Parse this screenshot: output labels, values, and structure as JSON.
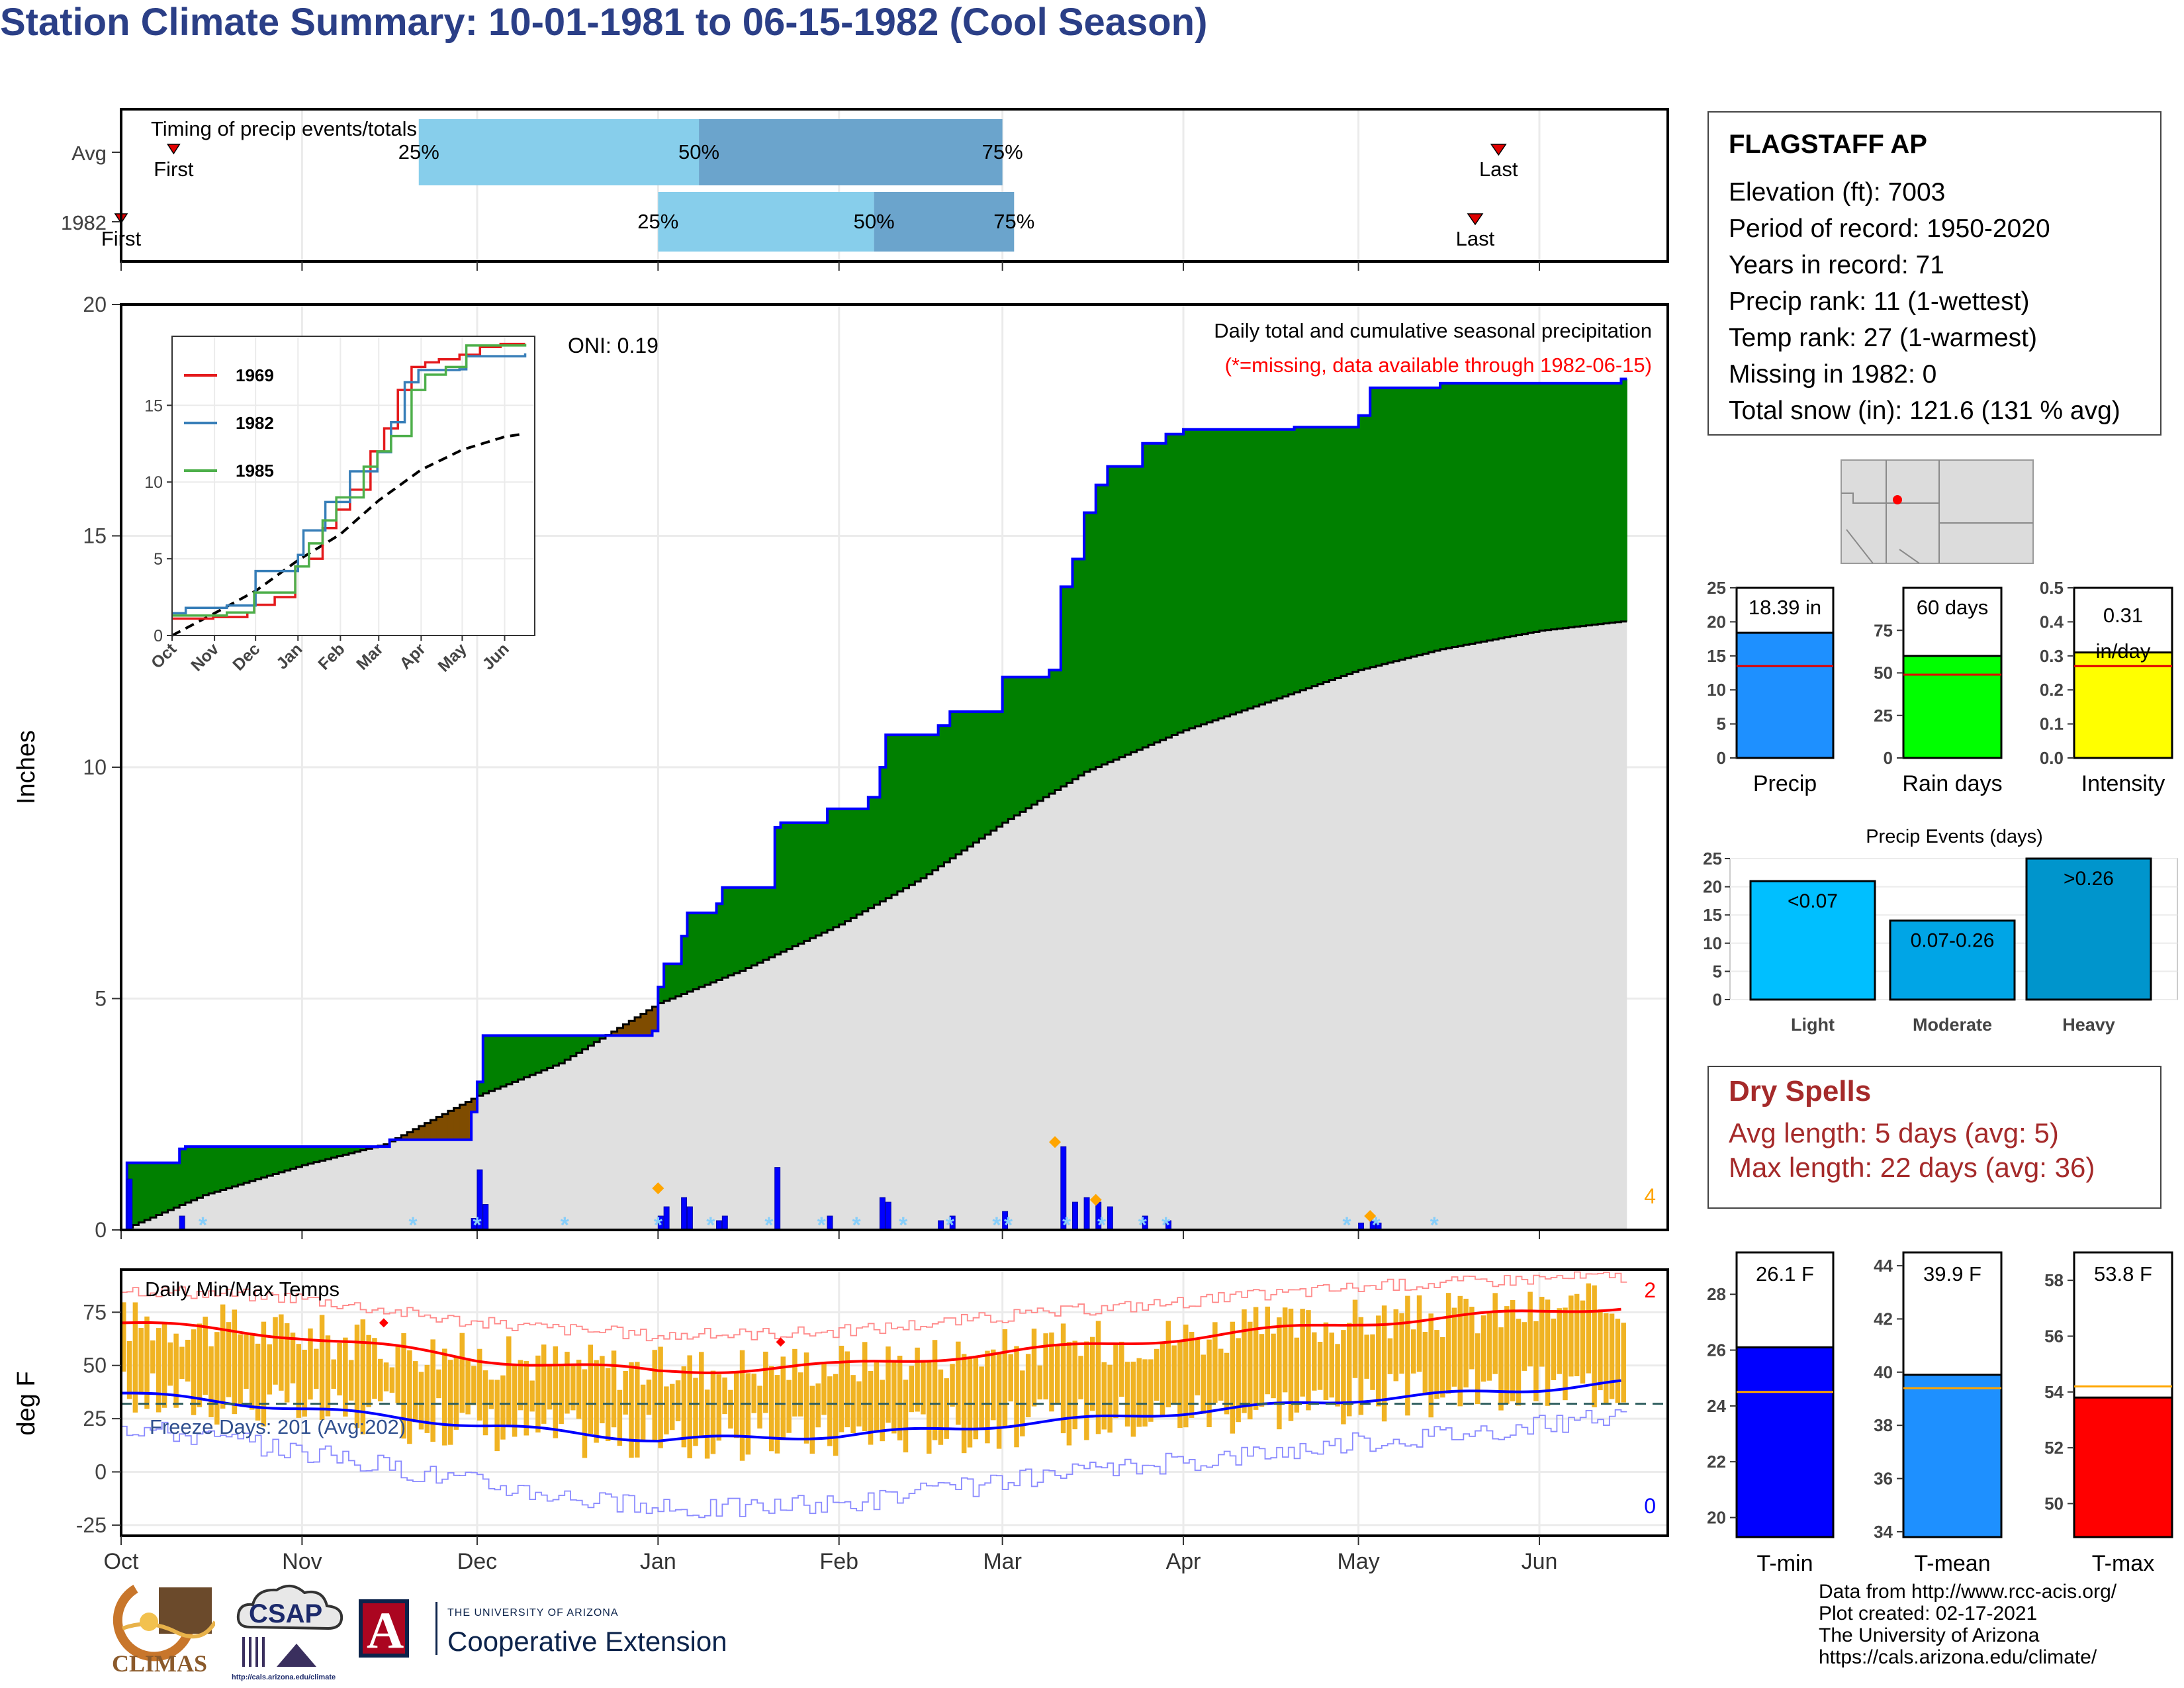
{
  "title": "Station Climate Summary: 10-01-1981 to 06-15-1982 (Cool Season)",
  "station": {
    "name": "FLAGSTAFF AP",
    "lines": [
      "Elevation (ft): 7003",
      "Period of record: 1950-2020",
      "Years in record: 71",
      "Precip rank: 11 (1-wettest)",
      "Temp rank: 27 (1-warmest)",
      "Missing in 1982: 0",
      "Total snow (in): 121.6 (131 % avg)"
    ]
  },
  "dry_spells": {
    "title": "Dry Spells",
    "avg_length": "Avg length: 5 days (avg: 5)",
    "max_length": "Max length: 22 days (avg: 36)"
  },
  "credits": [
    "Data from http://www.rcc-acis.org/",
    "Plot created: 02-17-2021",
    "The University of Arizona",
    "https://cals.arizona.edu/climate/"
  ],
  "logos": {
    "climas": "CLIMAS",
    "csap": "CSAP",
    "csap_url": "http://cals.arizona.edu/climate",
    "ua_small": "THE UNIVERSITY OF ARIZONA",
    "ua_big": "Cooperative Extension",
    "ua_letter": "A"
  },
  "colors": {
    "title": "#2b3f87",
    "surplus": "#008000",
    "deficit": "#7f4c00",
    "normal_fill": "#e0e0e0",
    "cum_line": "#0000ff",
    "daily_bar": "#0000ff",
    "snow_marker": "#87cefa",
    "extreme_marker": "#ffa500",
    "temp_bar": "#f0b323",
    "tmax_avg": "#ff0000",
    "tmin_avg": "#0000ff",
    "freeze_line": "#2f5f5f",
    "timing_light": "#87ceeb",
    "timing_dark": "#6ba4cc",
    "dry": "#a52a2a"
  },
  "months": [
    "Oct",
    "Nov",
    "Dec",
    "Jan",
    "Feb",
    "Mar",
    "Apr",
    "May",
    "Jun"
  ],
  "chart_data": [
    {
      "id": "timing",
      "type": "bar",
      "title": "Timing of precip events/totals",
      "rows": [
        {
          "label": "Avg",
          "first": "Oct 10",
          "q25": "Nov 21",
          "q50": "Jan 8",
          "q75": "Mar 1",
          "last": "May 25",
          "labels": {
            "first": "First",
            "last": "Last",
            "q25": "25%",
            "q50": "50%",
            "q75": "75%"
          }
        },
        {
          "label": "1982",
          "first": "Oct 1",
          "q25": "Jan 1",
          "q50": "Feb 7",
          "q75": "Mar 3",
          "last": "May 21",
          "labels": {
            "first": "First",
            "last": "Last",
            "q25": "25%",
            "q50": "50%",
            "q75": "75%"
          }
        }
      ]
    },
    {
      "id": "precip",
      "type": "area",
      "title": "Daily total and cumulative seasonal precipitation",
      "subtitle": "(*=missing, data available through 1982-06-15)",
      "oni": "ONI: 0.19",
      "ylabel": "Inches",
      "ylim": [
        0,
        20
      ],
      "yticks": [
        0,
        5,
        10,
        15,
        20
      ],
      "xticks": [
        "Oct",
        "Nov",
        "Dec",
        "Jan",
        "Feb",
        "Mar",
        "Apr",
        "May",
        "Jun"
      ],
      "extreme_count": "4",
      "cumulative_1982": [
        [
          "1981-10-01",
          0.0
        ],
        [
          "1981-10-02",
          1.45
        ],
        [
          "1981-10-11",
          1.75
        ],
        [
          "1981-10-12",
          1.8
        ],
        [
          "1981-11-11",
          1.8
        ],
        [
          "1981-11-16",
          1.95
        ],
        [
          "1981-11-30",
          2.55
        ],
        [
          "1981-12-01",
          3.2
        ],
        [
          "1981-12-02",
          4.2
        ],
        [
          "1981-12-31",
          4.3
        ],
        [
          "1982-01-01",
          5.25
        ],
        [
          "1982-01-02",
          5.75
        ],
        [
          "1982-01-05",
          6.35
        ],
        [
          "1982-01-06",
          6.85
        ],
        [
          "1982-01-11",
          7.05
        ],
        [
          "1982-01-12",
          7.4
        ],
        [
          "1982-01-21",
          8.7
        ],
        [
          "1982-01-22",
          8.8
        ],
        [
          "1982-01-29",
          8.8
        ],
        [
          "1982-01-30",
          9.1
        ],
        [
          "1982-02-06",
          9.35
        ],
        [
          "1982-02-08",
          10.0
        ],
        [
          "1982-02-09",
          10.7
        ],
        [
          "1982-02-18",
          10.9
        ],
        [
          "1982-02-20",
          11.2
        ],
        [
          "1982-03-01",
          11.95
        ],
        [
          "1982-03-09",
          12.1
        ],
        [
          "1982-03-11",
          13.9
        ],
        [
          "1982-03-13",
          14.5
        ],
        [
          "1982-03-15",
          15.5
        ],
        [
          "1982-03-17",
          16.1
        ],
        [
          "1982-03-19",
          16.5
        ],
        [
          "1982-03-25",
          17.0
        ],
        [
          "1982-03-29",
          17.2
        ],
        [
          "1982-04-01",
          17.3
        ],
        [
          "1982-04-20",
          17.35
        ],
        [
          "1982-05-01",
          17.6
        ],
        [
          "1982-05-03",
          18.2
        ],
        [
          "1982-05-15",
          18.3
        ],
        [
          "1982-06-15",
          18.39
        ]
      ],
      "normal_cumulative": [
        [
          "1981-10-01",
          0.0
        ],
        [
          "1981-10-15",
          0.75
        ],
        [
          "1981-11-01",
          1.4
        ],
        [
          "1981-11-15",
          1.85
        ],
        [
          "1981-12-01",
          2.9
        ],
        [
          "1981-12-15",
          3.6
        ],
        [
          "1982-01-01",
          4.9
        ],
        [
          "1982-01-15",
          5.6
        ],
        [
          "1982-02-01",
          6.6
        ],
        [
          "1982-02-15",
          7.6
        ],
        [
          "1982-03-01",
          8.8
        ],
        [
          "1982-03-15",
          9.9
        ],
        [
          "1982-04-01",
          10.8
        ],
        [
          "1982-04-15",
          11.4
        ],
        [
          "1982-05-01",
          12.1
        ],
        [
          "1982-05-15",
          12.55
        ],
        [
          "1982-06-01",
          12.95
        ],
        [
          "1982-06-15",
          13.15
        ]
      ],
      "daily_precip": [
        [
          "1981-10-02",
          1.1
        ],
        [
          "1981-10-11",
          0.3
        ],
        [
          "1981-11-30",
          0.25
        ],
        [
          "1981-12-01",
          1.3
        ],
        [
          "1981-12-02",
          0.55
        ],
        [
          "1982-01-01",
          0.3
        ],
        [
          "1982-01-02",
          0.5
        ],
        [
          "1982-01-05",
          0.7
        ],
        [
          "1982-01-06",
          0.5
        ],
        [
          "1982-01-11",
          0.2
        ],
        [
          "1982-01-12",
          0.3
        ],
        [
          "1982-01-21",
          1.35
        ],
        [
          "1982-01-30",
          0.3
        ],
        [
          "1982-02-08",
          0.7
        ],
        [
          "1982-02-09",
          0.6
        ],
        [
          "1982-02-18",
          0.2
        ],
        [
          "1982-02-20",
          0.3
        ],
        [
          "1982-03-01",
          0.4
        ],
        [
          "1982-03-11",
          1.8
        ],
        [
          "1982-03-13",
          0.6
        ],
        [
          "1982-03-15",
          0.7
        ],
        [
          "1982-03-17",
          0.6
        ],
        [
          "1982-03-19",
          0.5
        ],
        [
          "1982-03-25",
          0.3
        ],
        [
          "1982-03-29",
          0.2
        ],
        [
          "1982-05-01",
          0.15
        ],
        [
          "1982-05-03",
          0.2
        ],
        [
          "1982-05-04",
          0.15
        ]
      ],
      "extreme_markers": [
        [
          "1982-01-01",
          0.9
        ],
        [
          "1982-03-10",
          1.9
        ],
        [
          "1982-03-17",
          0.65
        ],
        [
          "1982-05-03",
          0.3
        ]
      ],
      "snow_markers": [
        "1981-10-15",
        "1981-11-20",
        "1981-12-01",
        "1981-12-16",
        "1982-01-01",
        "1982-01-10",
        "1982-01-20",
        "1982-01-29",
        "1982-02-04",
        "1982-02-12",
        "1982-02-20",
        "1982-02-28",
        "1982-03-02",
        "1982-03-12",
        "1982-03-18",
        "1982-03-25",
        "1982-03-29",
        "1982-04-29",
        "1982-05-04",
        "1982-05-14"
      ],
      "inset": {
        "type": "line",
        "xticks": [
          "Oct",
          "Nov",
          "Dec",
          "Jan",
          "Feb",
          "Mar",
          "Apr",
          "May",
          "Jun"
        ],
        "yticks": [
          0,
          5,
          10,
          15
        ],
        "ylim": [
          0,
          19.5
        ],
        "series": [
          {
            "name": "1969",
            "color": "#e41a1c",
            "values": [
              [
                0,
                1.1
              ],
              [
                30,
                1.2
              ],
              [
                55,
                1.5
              ],
              [
                60,
                2.0
              ],
              [
                75,
                2.5
              ],
              [
                90,
                4.5
              ],
              [
                100,
                5.0
              ],
              [
                110,
                7.0
              ],
              [
                120,
                8.2
              ],
              [
                130,
                9.5
              ],
              [
                145,
                12.0
              ],
              [
                155,
                13.5
              ],
              [
                165,
                16.0
              ],
              [
                175,
                17.5
              ],
              [
                185,
                17.8
              ],
              [
                195,
                18.0
              ],
              [
                210,
                18.3
              ],
              [
                225,
                18.8
              ],
              [
                240,
                19.0
              ],
              [
                258,
                19.0
              ]
            ]
          },
          {
            "name": "1982",
            "color": "#377eb8",
            "values": [
              [
                0,
                1.45
              ],
              [
                10,
                1.8
              ],
              [
                40,
                1.95
              ],
              [
                61,
                4.2
              ],
              [
                92,
                5.25
              ],
              [
                96,
                6.85
              ],
              [
                112,
                8.7
              ],
              [
                130,
                10.7
              ],
              [
                150,
                11.95
              ],
              [
                160,
                13.9
              ],
              [
                170,
                16.5
              ],
              [
                180,
                17.3
              ],
              [
                210,
                17.35
              ],
              [
                215,
                18.2
              ],
              [
                258,
                18.39
              ]
            ]
          },
          {
            "name": "1985",
            "color": "#4daf4a",
            "values": [
              [
                0,
                1.3
              ],
              [
                40,
                1.5
              ],
              [
                60,
                2.8
              ],
              [
                90,
                4.5
              ],
              [
                100,
                6.0
              ],
              [
                110,
                7.5
              ],
              [
                120,
                9.0
              ],
              [
                140,
                11.0
              ],
              [
                150,
                12.0
              ],
              [
                160,
                13.0
              ],
              [
                175,
                16.0
              ],
              [
                185,
                17.0
              ],
              [
                200,
                17.5
              ],
              [
                215,
                18.9
              ],
              [
                258,
                19.0
              ]
            ]
          }
        ],
        "normal": [
          [
            0,
            0
          ],
          [
            30,
            1.4
          ],
          [
            61,
            2.9
          ],
          [
            92,
            4.9
          ],
          [
            123,
            6.6
          ],
          [
            151,
            8.8
          ],
          [
            182,
            10.8
          ],
          [
            212,
            12.1
          ],
          [
            243,
            12.95
          ],
          [
            258,
            13.15
          ]
        ]
      }
    },
    {
      "id": "temps",
      "type": "bar",
      "title": "Daily Min/Max Temps",
      "ylabel": "deg F",
      "ylim": [
        -30,
        95
      ],
      "yticks": [
        -25,
        0,
        25,
        50,
        75
      ],
      "xticks": [
        "Oct",
        "Nov",
        "Dec",
        "Jan",
        "Feb",
        "Mar",
        "Apr",
        "May",
        "Jun"
      ],
      "freeze_label": "Freeze Days: 201 (Avg:202)",
      "freeze_line": 32,
      "record_high_count": "2",
      "record_low_count": "0",
      "avg_tmax": [
        [
          0,
          70
        ],
        [
          30,
          64
        ],
        [
          61,
          53
        ],
        [
          92,
          47
        ],
        [
          123,
          50
        ],
        [
          151,
          56
        ],
        [
          182,
          63
        ],
        [
          212,
          70
        ],
        [
          243,
          75
        ],
        [
          258,
          78
        ]
      ],
      "avg_tmin": [
        [
          0,
          37
        ],
        [
          30,
          30
        ],
        [
          61,
          22
        ],
        [
          92,
          15
        ],
        [
          123,
          17
        ],
        [
          151,
          22
        ],
        [
          182,
          28
        ],
        [
          212,
          34
        ],
        [
          243,
          39
        ],
        [
          258,
          42
        ]
      ],
      "record_high": [
        [
          0,
          86
        ],
        [
          30,
          82
        ],
        [
          61,
          70
        ],
        [
          92,
          64
        ],
        [
          123,
          66
        ],
        [
          151,
          73
        ],
        [
          182,
          80
        ],
        [
          212,
          87
        ],
        [
          243,
          91
        ],
        [
          258,
          92
        ]
      ],
      "record_low": [
        [
          0,
          22
        ],
        [
          30,
          10
        ],
        [
          61,
          -5
        ],
        [
          92,
          -18
        ],
        [
          123,
          -15
        ],
        [
          151,
          -5
        ],
        [
          182,
          5
        ],
        [
          212,
          14
        ],
        [
          243,
          22
        ],
        [
          258,
          26
        ]
      ],
      "record_high_markers": [
        [
          45,
          70
        ],
        [
          113,
          61
        ]
      ]
    },
    {
      "id": "summary_precip",
      "type": "bar",
      "categories": [
        "Precip",
        "Rain days",
        "Intensity"
      ],
      "values": [
        18.39,
        60,
        0.31
      ],
      "avg": [
        13.5,
        49,
        0.27
      ],
      "labels": [
        "18.39 in",
        "60 days",
        "0.31 in/day"
      ],
      "ylims": [
        [
          0,
          25
        ],
        [
          0,
          100
        ],
        [
          0,
          0.5
        ]
      ],
      "yticks": [
        [
          0,
          5,
          10,
          15,
          20,
          25
        ],
        [
          0,
          25,
          50,
          75
        ],
        [
          0.0,
          0.1,
          0.2,
          0.3,
          0.4,
          0.5
        ]
      ],
      "fills": [
        "#1e90ff",
        "#00ff00",
        "#ffff00"
      ]
    },
    {
      "id": "precip_events",
      "type": "bar",
      "title": "Precip Events (days)",
      "categories": [
        "Light",
        "Moderate",
        "Heavy"
      ],
      "labels": [
        "<0.07",
        "0.07-0.26",
        ">0.26"
      ],
      "values": [
        21,
        14,
        25
      ],
      "ylim": [
        0,
        25
      ],
      "yticks": [
        0,
        5,
        10,
        15,
        20,
        25
      ],
      "fills": [
        "#00bfff",
        "#00a5e6",
        "#0095cc"
      ]
    },
    {
      "id": "summary_temps",
      "type": "bar",
      "categories": [
        "T-min",
        "T-mean",
        "T-max"
      ],
      "values": [
        26.1,
        39.9,
        53.8
      ],
      "avg": [
        24.5,
        39.4,
        54.2
      ],
      "labels": [
        "26.1 F",
        "39.9 F",
        "53.8 F"
      ],
      "ylims": [
        [
          19.3,
          29.5
        ],
        [
          33.8,
          44.5
        ],
        [
          48.8,
          59
        ]
      ],
      "yticks": [
        [
          20,
          22,
          24,
          26,
          28
        ],
        [
          34,
          36,
          38,
          40,
          42,
          44
        ],
        [
          50,
          52,
          54,
          56,
          58
        ]
      ],
      "fills": [
        "#0000ff",
        "#1e90ff",
        "#ff0000"
      ]
    }
  ]
}
